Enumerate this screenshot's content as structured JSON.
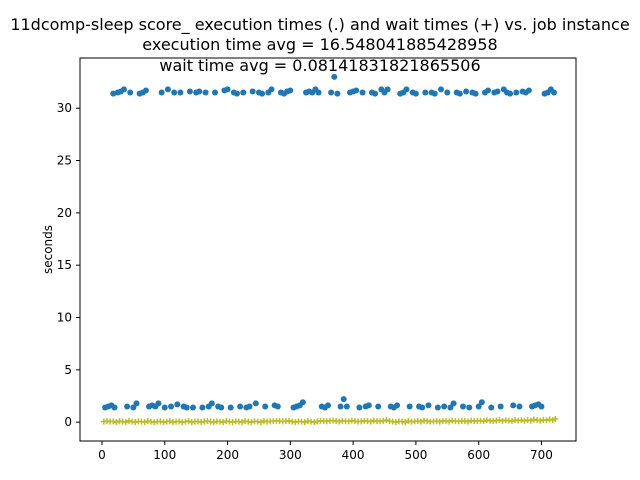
{
  "chart_data": {
    "type": "scatter",
    "title_lines": [
      "11dcomp-sleep score_ execution times (.) and wait times (+) vs. job instance",
      "execution time avg = 16.548041885428958",
      "wait time avg = 0.08141831821865506"
    ],
    "xlabel": "",
    "ylabel": "seconds",
    "xlim": [
      -35,
      755
    ],
    "ylim": [
      -1.8,
      34.8
    ],
    "xticks": [
      0,
      100,
      200,
      300,
      400,
      500,
      600,
      700
    ],
    "yticks": [
      0,
      5,
      10,
      15,
      20,
      25,
      30
    ],
    "grid": false,
    "series": [
      {
        "marker": "dot",
        "color": "#1f77b4",
        "points": [
          [
            5,
            1.4
          ],
          [
            10,
            1.5
          ],
          [
            15,
            1.6
          ],
          [
            18,
            31.4
          ],
          [
            20,
            1.4
          ],
          [
            25,
            31.5
          ],
          [
            30,
            31.6
          ],
          [
            35,
            31.8
          ],
          [
            40,
            1.5
          ],
          [
            45,
            31.5
          ],
          [
            50,
            1.4
          ],
          [
            55,
            1.8
          ],
          [
            60,
            31.4
          ],
          [
            65,
            31.5
          ],
          [
            70,
            31.7
          ],
          [
            75,
            1.5
          ],
          [
            80,
            1.6
          ],
          [
            85,
            1.5
          ],
          [
            90,
            1.8
          ],
          [
            95,
            31.5
          ],
          [
            100,
            1.4
          ],
          [
            105,
            31.8
          ],
          [
            110,
            1.5
          ],
          [
            115,
            31.5
          ],
          [
            120,
            1.7
          ],
          [
            125,
            31.5
          ],
          [
            130,
            1.5
          ],
          [
            135,
            1.4
          ],
          [
            140,
            31.6
          ],
          [
            145,
            1.4
          ],
          [
            150,
            31.5
          ],
          [
            155,
            31.6
          ],
          [
            160,
            1.4
          ],
          [
            165,
            31.5
          ],
          [
            170,
            1.5
          ],
          [
            175,
            1.8
          ],
          [
            180,
            31.5
          ],
          [
            185,
            1.5
          ],
          [
            190,
            1.4
          ],
          [
            195,
            31.7
          ],
          [
            200,
            31.8
          ],
          [
            205,
            1.4
          ],
          [
            210,
            31.5
          ],
          [
            215,
            31.4
          ],
          [
            220,
            1.5
          ],
          [
            225,
            31.5
          ],
          [
            230,
            1.4
          ],
          [
            235,
            1.5
          ],
          [
            240,
            31.6
          ],
          [
            245,
            1.8
          ],
          [
            250,
            31.5
          ],
          [
            255,
            31.4
          ],
          [
            260,
            1.5
          ],
          [
            265,
            31.5
          ],
          [
            270,
            31.8
          ],
          [
            275,
            1.6
          ],
          [
            280,
            1.5
          ],
          [
            285,
            31.5
          ],
          [
            290,
            31.4
          ],
          [
            295,
            31.6
          ],
          [
            300,
            31.7
          ],
          [
            305,
            1.4
          ],
          [
            310,
            1.5
          ],
          [
            315,
            1.6
          ],
          [
            320,
            1.9
          ],
          [
            325,
            31.5
          ],
          [
            330,
            31.6
          ],
          [
            335,
            31.5
          ],
          [
            340,
            31.8
          ],
          [
            345,
            31.5
          ],
          [
            350,
            1.5
          ],
          [
            355,
            1.4
          ],
          [
            360,
            1.6
          ],
          [
            365,
            31.5
          ],
          [
            370,
            33.0
          ],
          [
            375,
            31.4
          ],
          [
            380,
            1.5
          ],
          [
            385,
            2.2
          ],
          [
            390,
            1.5
          ],
          [
            395,
            31.5
          ],
          [
            400,
            31.6
          ],
          [
            405,
            31.7
          ],
          [
            410,
            1.4
          ],
          [
            415,
            31.5
          ],
          [
            420,
            1.5
          ],
          [
            425,
            1.6
          ],
          [
            430,
            31.5
          ],
          [
            435,
            31.4
          ],
          [
            440,
            1.5
          ],
          [
            445,
            31.8
          ],
          [
            450,
            31.5
          ],
          [
            455,
            31.8
          ],
          [
            460,
            1.5
          ],
          [
            465,
            1.4
          ],
          [
            470,
            1.6
          ],
          [
            475,
            31.4
          ],
          [
            480,
            31.5
          ],
          [
            485,
            31.8
          ],
          [
            490,
            1.5
          ],
          [
            495,
            31.5
          ],
          [
            500,
            31.4
          ],
          [
            505,
            1.5
          ],
          [
            510,
            1.4
          ],
          [
            515,
            31.5
          ],
          [
            520,
            1.6
          ],
          [
            525,
            31.5
          ],
          [
            530,
            31.4
          ],
          [
            535,
            1.4
          ],
          [
            540,
            31.8
          ],
          [
            545,
            1.5
          ],
          [
            550,
            31.5
          ],
          [
            555,
            1.4
          ],
          [
            560,
            1.8
          ],
          [
            565,
            31.5
          ],
          [
            570,
            31.4
          ],
          [
            575,
            1.5
          ],
          [
            580,
            31.6
          ],
          [
            585,
            1.4
          ],
          [
            590,
            31.5
          ],
          [
            595,
            31.4
          ],
          [
            600,
            1.5
          ],
          [
            605,
            1.9
          ],
          [
            610,
            31.5
          ],
          [
            615,
            31.7
          ],
          [
            620,
            1.4
          ],
          [
            625,
            31.5
          ],
          [
            630,
            31.6
          ],
          [
            635,
            1.5
          ],
          [
            640,
            31.8
          ],
          [
            645,
            31.5
          ],
          [
            650,
            31.4
          ],
          [
            655,
            1.6
          ],
          [
            660,
            31.5
          ],
          [
            665,
            1.5
          ],
          [
            670,
            31.6
          ],
          [
            675,
            31.5
          ],
          [
            680,
            31.7
          ],
          [
            685,
            1.5
          ],
          [
            690,
            1.6
          ],
          [
            695,
            1.7
          ],
          [
            700,
            1.5
          ],
          [
            705,
            31.4
          ],
          [
            710,
            31.5
          ],
          [
            715,
            31.8
          ],
          [
            720,
            31.5
          ]
        ]
      },
      {
        "marker": "plus",
        "color": "#bcbd22",
        "points": [
          [
            3,
            0.05
          ],
          [
            8,
            0.1
          ],
          [
            13,
            0.05
          ],
          [
            18,
            0.08
          ],
          [
            23,
            0.0
          ],
          [
            28,
            0.1
          ],
          [
            33,
            0.05
          ],
          [
            38,
            0.0
          ],
          [
            43,
            0.12
          ],
          [
            48,
            0.05
          ],
          [
            53,
            0.0
          ],
          [
            58,
            0.08
          ],
          [
            63,
            0.05
          ],
          [
            68,
            0.0
          ],
          [
            73,
            0.1
          ],
          [
            78,
            0.05
          ],
          [
            83,
            0.0
          ],
          [
            88,
            0.05
          ],
          [
            93,
            0.08
          ],
          [
            98,
            0.0
          ],
          [
            103,
            0.05
          ],
          [
            108,
            0.1
          ],
          [
            113,
            0.0
          ],
          [
            118,
            0.05
          ],
          [
            123,
            0.08
          ],
          [
            128,
            0.0
          ],
          [
            133,
            0.05
          ],
          [
            138,
            0.1
          ],
          [
            143,
            0.0
          ],
          [
            148,
            0.05
          ],
          [
            153,
            0.08
          ],
          [
            158,
            0.0
          ],
          [
            163,
            0.05
          ],
          [
            168,
            0.1
          ],
          [
            173,
            0.05
          ],
          [
            178,
            0.0
          ],
          [
            183,
            0.08
          ],
          [
            188,
            0.05
          ],
          [
            193,
            0.0
          ],
          [
            198,
            0.1
          ],
          [
            203,
            0.05
          ],
          [
            208,
            0.0
          ],
          [
            213,
            0.08
          ],
          [
            218,
            0.05
          ],
          [
            223,
            0.0
          ],
          [
            228,
            0.1
          ],
          [
            233,
            0.05
          ],
          [
            238,
            0.0
          ],
          [
            243,
            0.08
          ],
          [
            248,
            0.05
          ],
          [
            253,
            0.0
          ],
          [
            258,
            0.1
          ],
          [
            263,
            0.05
          ],
          [
            268,
            0.08
          ],
          [
            273,
            0.1
          ],
          [
            278,
            0.12
          ],
          [
            283,
            0.1
          ],
          [
            288,
            0.08
          ],
          [
            293,
            0.1
          ],
          [
            298,
            0.12
          ],
          [
            303,
            0.05
          ],
          [
            308,
            0.0
          ],
          [
            313,
            0.08
          ],
          [
            318,
            0.05
          ],
          [
            323,
            0.0
          ],
          [
            328,
            0.1
          ],
          [
            333,
            0.05
          ],
          [
            338,
            0.0
          ],
          [
            343,
            0.08
          ],
          [
            348,
            0.12
          ],
          [
            353,
            0.1
          ],
          [
            358,
            0.08
          ],
          [
            363,
            0.12
          ],
          [
            368,
            0.15
          ],
          [
            373,
            0.1
          ],
          [
            378,
            0.05
          ],
          [
            383,
            0.12
          ],
          [
            388,
            0.1
          ],
          [
            393,
            0.08
          ],
          [
            398,
            0.15
          ],
          [
            403,
            0.1
          ],
          [
            408,
            0.05
          ],
          [
            413,
            0.08
          ],
          [
            418,
            0.12
          ],
          [
            423,
            0.1
          ],
          [
            428,
            0.05
          ],
          [
            433,
            0.15
          ],
          [
            438,
            0.1
          ],
          [
            443,
            0.08
          ],
          [
            448,
            0.12
          ],
          [
            453,
            0.2
          ],
          [
            458,
            0.1
          ],
          [
            463,
            0.05
          ],
          [
            468,
            0.0
          ],
          [
            473,
            0.08
          ],
          [
            478,
            0.05
          ],
          [
            483,
            0.0
          ],
          [
            488,
            0.1
          ],
          [
            493,
            0.05
          ],
          [
            498,
            0.08
          ],
          [
            503,
            0.1
          ],
          [
            508,
            0.05
          ],
          [
            513,
            0.12
          ],
          [
            518,
            0.1
          ],
          [
            523,
            0.05
          ],
          [
            528,
            0.08
          ],
          [
            533,
            0.1
          ],
          [
            538,
            0.05
          ],
          [
            543,
            0.12
          ],
          [
            548,
            0.1
          ],
          [
            553,
            0.05
          ],
          [
            558,
            0.15
          ],
          [
            563,
            0.1
          ],
          [
            568,
            0.08
          ],
          [
            573,
            0.12
          ],
          [
            578,
            0.1
          ],
          [
            583,
            0.05
          ],
          [
            588,
            0.15
          ],
          [
            593,
            0.1
          ],
          [
            598,
            0.12
          ],
          [
            603,
            0.15
          ],
          [
            608,
            0.1
          ],
          [
            613,
            0.18
          ],
          [
            618,
            0.12
          ],
          [
            623,
            0.1
          ],
          [
            628,
            0.15
          ],
          [
            633,
            0.2
          ],
          [
            638,
            0.12
          ],
          [
            643,
            0.18
          ],
          [
            648,
            0.15
          ],
          [
            653,
            0.1
          ],
          [
            658,
            0.2
          ],
          [
            663,
            0.15
          ],
          [
            668,
            0.18
          ],
          [
            673,
            0.12
          ],
          [
            678,
            0.2
          ],
          [
            683,
            0.15
          ],
          [
            688,
            0.25
          ],
          [
            693,
            0.2
          ],
          [
            698,
            0.15
          ],
          [
            703,
            0.22
          ],
          [
            708,
            0.18
          ],
          [
            713,
            0.25
          ],
          [
            718,
            0.2
          ],
          [
            722,
            0.3
          ]
        ]
      }
    ]
  }
}
